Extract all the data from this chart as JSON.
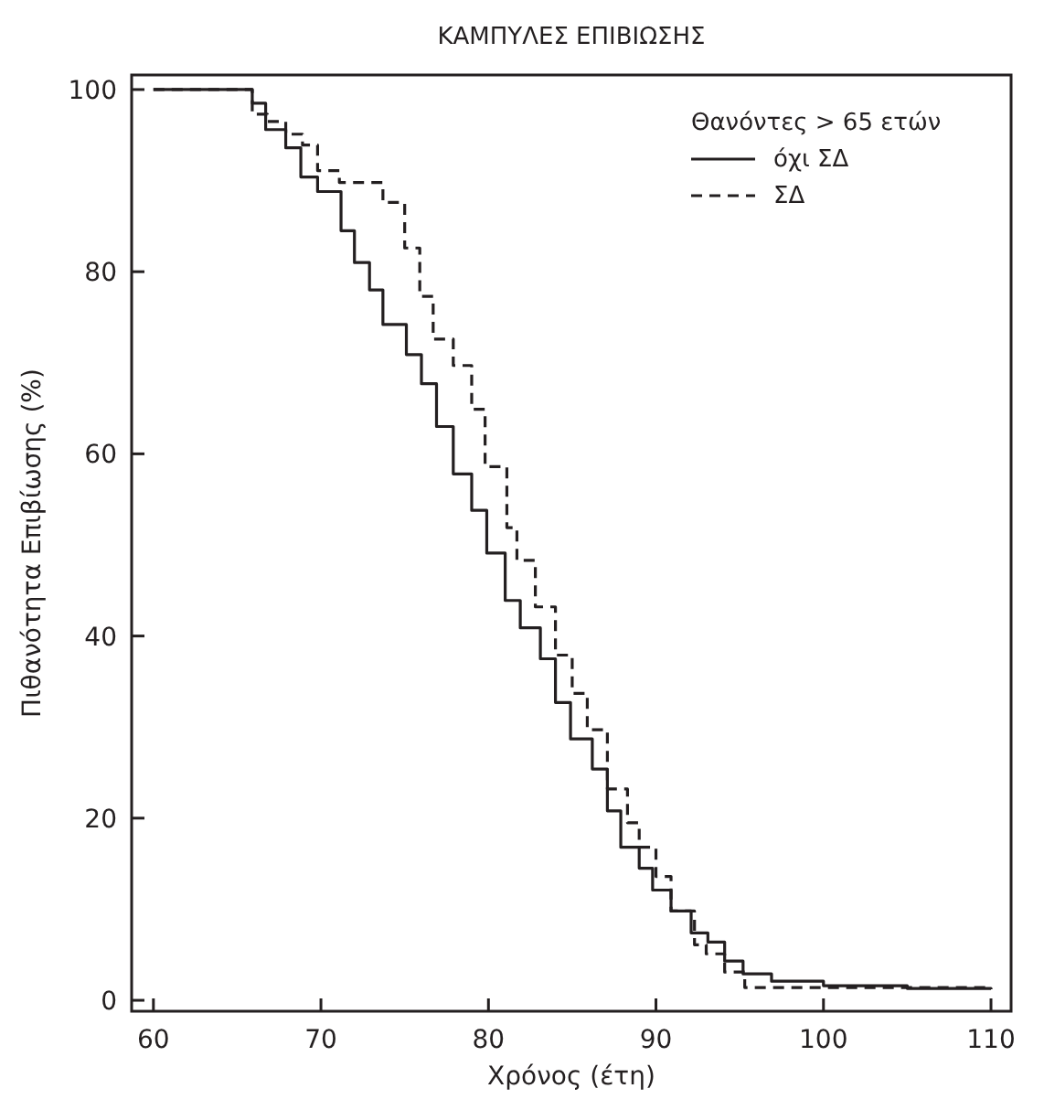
{
  "chart_data": {
    "type": "step",
    "title": "ΚΑΜΠΥΛΕΣ ΕΠΙΒΙΩΣΗΣ",
    "xlabel": "Χρόνος (έτη)",
    "ylabel": "Πιθανότητα Επιβίωσης (%)",
    "legend_title": "Θανόντες > 65 ετών",
    "legend": "top right",
    "grid": false,
    "xlim": [
      58.7,
      111.2
    ],
    "ylim": [
      -1.2,
      101.6
    ],
    "xticks": [
      60,
      70,
      80,
      90,
      100,
      110
    ],
    "yticks": [
      0,
      20,
      40,
      60,
      80,
      100
    ],
    "series": [
      {
        "name": "όχι ΣΔ",
        "color": "#231f20",
        "line_style": "solid",
        "x": [
          60,
          65.9,
          66.7,
          67.9,
          68.8,
          69.8,
          71.2,
          72.0,
          72.9,
          73.7,
          75.1,
          76.0,
          76.9,
          77.9,
          79.0,
          79.9,
          81.0,
          81.9,
          83.1,
          84.0,
          84.9,
          86.2,
          87.1,
          87.9,
          89.0,
          89.8,
          90.9,
          92.1,
          93.1,
          94.1,
          95.2,
          96.9,
          100,
          105,
          110
        ],
        "values": [
          100,
          98.5,
          95.6,
          93.6,
          90.4,
          88.8,
          84.5,
          81.0,
          78.0,
          74.2,
          70.9,
          67.7,
          63.0,
          57.8,
          53.8,
          49.1,
          43.9,
          40.9,
          37.5,
          32.7,
          28.7,
          25.4,
          20.8,
          16.8,
          14.5,
          12.1,
          9.8,
          7.4,
          6.4,
          4.3,
          2.9,
          2.1,
          1.6,
          1.3,
          1.2
        ]
      },
      {
        "name": "ΣΔ",
        "color": "#231f20",
        "line_style": "dashed",
        "x": [
          60,
          65.9,
          66.8,
          67.9,
          68.9,
          69.8,
          71.1,
          73.7,
          75.0,
          75.9,
          76.7,
          77.9,
          79.0,
          79.8,
          81.1,
          81.7,
          82.8,
          84.0,
          85.0,
          85.9,
          87.1,
          88.3,
          89.0,
          90.0,
          90.9,
          92.3,
          93.0,
          94.1,
          95.3,
          110
        ],
        "values": [
          100,
          97.3,
          96.5,
          95.1,
          93.9,
          91.1,
          89.8,
          87.6,
          82.6,
          77.3,
          72.6,
          69.7,
          64.9,
          58.6,
          51.9,
          48.3,
          43.2,
          37.9,
          33.7,
          29.7,
          23.2,
          19.5,
          16.8,
          13.6,
          9.8,
          6.1,
          5.1,
          3.1,
          1.4,
          1.2
        ]
      }
    ]
  }
}
